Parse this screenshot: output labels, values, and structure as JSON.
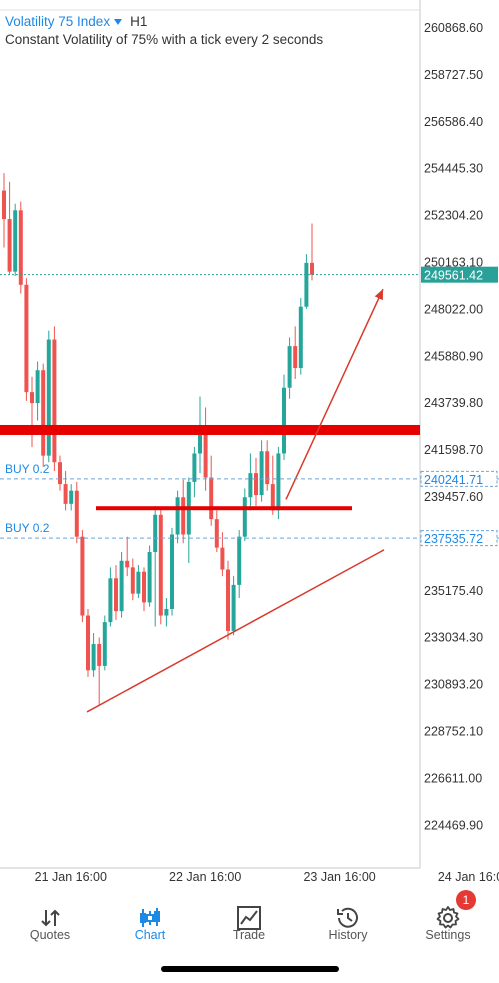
{
  "header": {
    "symbol": "Volatility 75 Index",
    "timeframe": "H1",
    "subtitle": "Constant Volatility of 75% with a tick every 2 seconds"
  },
  "chart_data": {
    "type": "candlestick",
    "ylim": [
      222500,
      262000
    ],
    "price_labels": [
      "260868.60",
      "258727.50",
      "256586.40",
      "254445.30",
      "252304.20",
      "250163.10",
      "248022.00",
      "245880.90",
      "243739.80",
      "241598.70",
      "239457.60",
      "237535.72",
      "235175.40",
      "233034.30",
      "230893.20",
      "228752.10",
      "226611.00",
      "224469.90"
    ],
    "price_label_values": [
      260868.6,
      258727.5,
      256586.4,
      254445.3,
      252304.2,
      250163.1,
      248022.0,
      245880.9,
      243739.8,
      241598.7,
      239457.6,
      237535.72,
      235175.4,
      233034.3,
      230893.2,
      228752.1,
      226611.0,
      224469.9
    ],
    "x_labels": [
      "21 Jan 16:00",
      "22 Jan 16:00",
      "23 Jan 16:00",
      "24 Jan 16:00"
    ],
    "x_label_index": [
      8,
      32,
      56,
      80
    ],
    "current_price": {
      "label": "249561.42",
      "value": 249561.42
    },
    "orders": [
      {
        "label": "BUY 0.2",
        "price_label": "240241.71",
        "value": 240241.71
      },
      {
        "label": "BUY 0.2",
        "price_label": "237535.72",
        "value": 237535.72
      }
    ],
    "candles": [
      [
        253400,
        254200,
        250800,
        252100
      ],
      [
        252100,
        253800,
        249600,
        249700
      ],
      [
        249700,
        252800,
        249500,
        252500
      ],
      [
        252500,
        252900,
        248700,
        249100
      ],
      [
        249100,
        249400,
        243800,
        244200
      ],
      [
        244200,
        244900,
        241700,
        243700
      ],
      [
        243700,
        245600,
        242900,
        245200
      ],
      [
        245200,
        245500,
        240800,
        241300
      ],
      [
        241300,
        247000,
        241000,
        246600
      ],
      [
        246600,
        247200,
        240600,
        241000
      ],
      [
        241000,
        241300,
        239700,
        240000
      ],
      [
        240000,
        240600,
        238800,
        239100
      ],
      [
        239100,
        240000,
        238800,
        239700
      ],
      [
        239700,
        240100,
        237300,
        237600
      ],
      [
        237600,
        237900,
        233700,
        234000
      ],
      [
        234000,
        234300,
        231200,
        231500
      ],
      [
        231500,
        233200,
        231200,
        232700
      ],
      [
        232700,
        233000,
        229900,
        231700
      ],
      [
        231700,
        234000,
        231500,
        233700
      ],
      [
        233700,
        236200,
        233500,
        235700
      ],
      [
        235700,
        236300,
        233800,
        234200
      ],
      [
        234200,
        236900,
        233900,
        236500
      ],
      [
        236500,
        237600,
        235800,
        236200
      ],
      [
        236200,
        236600,
        234700,
        235000
      ],
      [
        235000,
        236300,
        234800,
        236000
      ],
      [
        236000,
        236200,
        234200,
        234600
      ],
      [
        234600,
        237200,
        234400,
        236900
      ],
      [
        236900,
        239000,
        233500,
        238600
      ],
      [
        238600,
        238900,
        233600,
        234000
      ],
      [
        234000,
        234800,
        233500,
        234300
      ],
      [
        234300,
        238000,
        234000,
        237700
      ],
      [
        237700,
        239700,
        237300,
        239400
      ],
      [
        239400,
        240200,
        237300,
        237700
      ],
      [
        237700,
        240300,
        236400,
        240100
      ],
      [
        240100,
        241700,
        239400,
        241400
      ],
      [
        241400,
        244000,
        240500,
        242500
      ],
      [
        242500,
        243500,
        239700,
        240300
      ],
      [
        240300,
        241300,
        238100,
        238400
      ],
      [
        238400,
        238800,
        236900,
        237100
      ],
      [
        237100,
        237800,
        235800,
        236100
      ],
      [
        236100,
        236500,
        232900,
        233300
      ],
      [
        233300,
        235800,
        233100,
        235400
      ],
      [
        235400,
        237900,
        234800,
        237600
      ],
      [
        237600,
        239800,
        237400,
        239400
      ],
      [
        239400,
        241400,
        238800,
        240500
      ],
      [
        240500,
        241200,
        239000,
        239500
      ],
      [
        239500,
        242000,
        239200,
        241500
      ],
      [
        241500,
        242000,
        239700,
        240000
      ],
      [
        240000,
        241300,
        238600,
        238800
      ],
      [
        238800,
        241700,
        238400,
        241400
      ],
      [
        241400,
        245000,
        241100,
        244400
      ],
      [
        244400,
        246700,
        243900,
        246300
      ],
      [
        246300,
        247200,
        244800,
        245300
      ],
      [
        245300,
        248500,
        245000,
        248100
      ],
      [
        248100,
        250500,
        248000,
        250100
      ],
      [
        250100,
        251900,
        249300,
        249560
      ]
    ],
    "colors": {
      "up": "#26a69a",
      "down": "#ef5350",
      "resistance": "#e60000",
      "trend": "#d93a2b",
      "price_line": "#2aa198",
      "order_line": "#6ea4d6",
      "axis_text": "#333333"
    }
  },
  "tabs": [
    {
      "label": "Quotes",
      "icon": "quotes-arrows-icon",
      "active": false
    },
    {
      "label": "Chart",
      "icon": "candlestick-chart-icon",
      "active": true
    },
    {
      "label": "Trade",
      "icon": "trade-chart-icon",
      "active": false
    },
    {
      "label": "History",
      "icon": "history-clock-icon",
      "active": false
    },
    {
      "label": "Settings",
      "icon": "gear-icon",
      "active": false,
      "badge": "1"
    }
  ]
}
